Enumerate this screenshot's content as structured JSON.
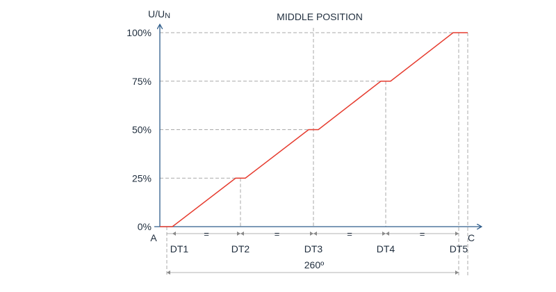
{
  "title": "MIDDLE POSITION",
  "y_axis_label": "U/U",
  "y_axis_label_sub": "N",
  "y_ticks": [
    "0%",
    "25%",
    "50%",
    "75%",
    "100%"
  ],
  "x_start_label": "A",
  "x_end_label": "C",
  "dt_labels": [
    "DT1",
    "DT2",
    "DT3",
    "DT4",
    "DT5"
  ],
  "equal_marks": [
    "=",
    "=",
    "=",
    "=",
    "="
  ],
  "span_label": "260º",
  "colors": {
    "curve": "#e63b2e",
    "axis": "#2e5c8a",
    "grid": "#a9a9a9",
    "text": "#1f2d3d"
  },
  "chart_data": {
    "type": "line",
    "title": "MIDDLE POSITION",
    "ylabel": "U/UN",
    "xlabel": "",
    "ylim": [
      0,
      100
    ],
    "y_unit": "%",
    "grid": true,
    "x_markers": [
      "A",
      "DT1",
      "DT2",
      "DT3",
      "DT4",
      "DT5",
      "C"
    ],
    "series": [
      {
        "points": [
          {
            "x": "A",
            "y": 0
          },
          {
            "x": "DT1",
            "y": 0
          },
          {
            "x": "DT2",
            "y": 25
          },
          {
            "x": "DT3",
            "y": 50
          },
          {
            "x": "DT4",
            "y": 75
          },
          {
            "x": "DT5",
            "y": 100
          },
          {
            "x": "C",
            "y": 100
          }
        ]
      }
    ]
  }
}
